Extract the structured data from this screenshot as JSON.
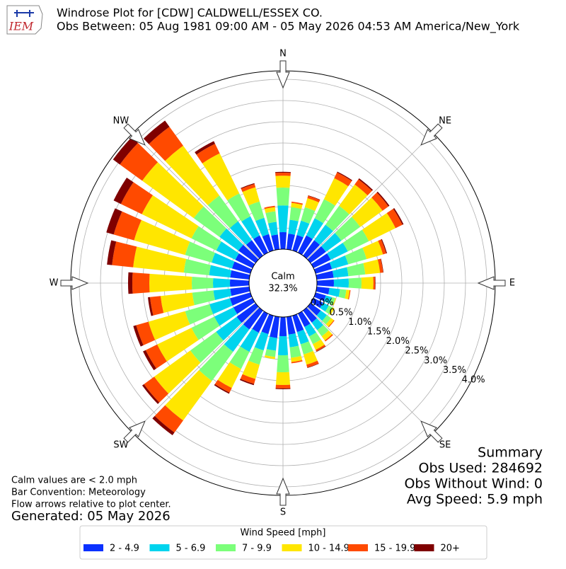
{
  "chart_data": {
    "type": "windrose",
    "title": "Windrose Plot for [CDW] CALDWELL/ESSEX CO.",
    "subtitle": "Obs Between: 05 Aug 1981 09:00 AM - 05 May 2026 04:53 AM America/New_York",
    "logo": "IEM",
    "calm_label": "Calm",
    "calm_value": {
      "value": 32.3,
      "label": "32.3%"
    },
    "notes": [
      "Calm values are < 2.0 mph",
      "Bar Convention: Meteorology",
      "Flow arrows relative to plot center."
    ],
    "generated": "Generated: 05 May 2026",
    "summary": [
      "Summary",
      "Obs Used: 284692",
      "Obs Without Wind: 0",
      "Avg Speed: 5.9 mph"
    ],
    "legend_title": "Wind Speed [mph]",
    "compass": [
      {
        "value": 0,
        "label": "N"
      },
      {
        "value": 45,
        "label": "NE"
      },
      {
        "value": 90,
        "label": "E"
      },
      {
        "value": 135,
        "label": "SE"
      },
      {
        "value": 180,
        "label": "S"
      },
      {
        "value": 225,
        "label": "SW"
      },
      {
        "value": 270,
        "label": "W"
      },
      {
        "value": 315,
        "label": "NW"
      }
    ],
    "x": [
      0,
      10,
      20,
      30,
      40,
      50,
      60,
      70,
      80,
      90,
      100,
      110,
      120,
      130,
      140,
      150,
      160,
      170,
      180,
      190,
      200,
      210,
      220,
      230,
      240,
      250,
      260,
      270,
      280,
      290,
      300,
      310,
      320,
      330,
      340,
      350
    ],
    "rlim": [
      0,
      4.2
    ],
    "rticks": [
      {
        "value": 0,
        "label": "0.0%"
      },
      {
        "value": 0.5,
        "label": "0.5%"
      },
      {
        "value": 1,
        "label": "1.0%"
      },
      {
        "value": 1.5,
        "label": "1.5%"
      },
      {
        "value": 2,
        "label": "2.0%"
      },
      {
        "value": 2.5,
        "label": "2.5%"
      },
      {
        "value": 3,
        "label": "3.0%"
      },
      {
        "value": 3.5,
        "label": "3.5%"
      },
      {
        "value": 4,
        "label": "4.0%"
      }
    ],
    "series": [
      {
        "name": "2 - 4.9",
        "color": "#0b31ff",
        "values": [
          0.4,
          0.37,
          0.38,
          0.45,
          0.45,
          0.45,
          0.45,
          0.4,
          0.4,
          0.4,
          0.3,
          0.25,
          0.25,
          0.3,
          0.35,
          0.35,
          0.4,
          0.42,
          0.45,
          0.5,
          0.45,
          0.5,
          0.55,
          0.55,
          0.5,
          0.5,
          0.45,
          0.45,
          0.45,
          0.45,
          0.45,
          0.5,
          0.45,
          0.45,
          0.4,
          0.35
        ]
      },
      {
        "name": "5 - 6.9",
        "color": "#00d4ee",
        "values": [
          0.63,
          0.33,
          0.35,
          0.45,
          0.45,
          0.45,
          0.45,
          0.4,
          0.35,
          0.35,
          0.25,
          0.15,
          0.15,
          0.18,
          0.22,
          0.25,
          0.3,
          0.3,
          0.45,
          0.3,
          0.4,
          0.5,
          0.65,
          0.6,
          0.5,
          0.5,
          0.4,
          0.4,
          0.5,
          0.5,
          0.5,
          0.55,
          0.55,
          0.5,
          0.4,
          0.3
        ]
      },
      {
        "name": "7 - 9.9",
        "color": "#7cff7a",
        "values": [
          0.42,
          0.3,
          0.33,
          0.5,
          0.55,
          0.55,
          0.55,
          0.45,
          0.4,
          0.3,
          0.15,
          0.08,
          0.1,
          0.12,
          0.18,
          0.2,
          0.25,
          0.25,
          0.4,
          0.15,
          0.35,
          0.45,
          0.85,
          0.75,
          0.6,
          0.6,
          0.5,
          0.5,
          0.6,
          0.65,
          0.65,
          0.75,
          0.75,
          0.6,
          0.4,
          0.25
        ]
      },
      {
        "name": "10 - 14.9",
        "color": "#ffe600",
        "values": [
          0.28,
          0.1,
          0.22,
          0.55,
          0.62,
          0.65,
          0.7,
          0.4,
          0.35,
          0.28,
          0.08,
          0.02,
          0.05,
          0.08,
          0.12,
          0.15,
          0.25,
          0.1,
          0.3,
          0.05,
          0.35,
          0.5,
          1.15,
          1.05,
          0.9,
          0.9,
          0.75,
          1.0,
          1.2,
          1.25,
          1.3,
          1.5,
          1.45,
          1.05,
          0.35,
          0.1
        ]
      },
      {
        "name": "15 - 19.9",
        "color": "#ff4a00",
        "values": [
          0.07,
          0.03,
          0.06,
          0.15,
          0.15,
          0.17,
          0.18,
          0.08,
          0.07,
          0.04,
          0.02,
          0,
          0,
          0.02,
          0.03,
          0.04,
          0.07,
          0.03,
          0.08,
          0,
          0.12,
          0.12,
          0.35,
          0.3,
          0.3,
          0.3,
          0.25,
          0.4,
          0.5,
          0.5,
          0.55,
          0.65,
          0.55,
          0.25,
          0.08,
          0.03
        ]
      },
      {
        "name": "20+",
        "color": "#7f0000",
        "values": [
          0.02,
          0,
          0.01,
          0.02,
          0.03,
          0.03,
          0.03,
          0.02,
          0.01,
          0.01,
          0,
          0,
          0,
          0,
          0,
          0.01,
          0.01,
          0,
          0.02,
          0,
          0.03,
          0.03,
          0.08,
          0.05,
          0.07,
          0.07,
          0.05,
          0.1,
          0.12,
          0.18,
          0.19,
          0.2,
          0.18,
          0.07,
          0.02,
          0
        ]
      }
    ]
  }
}
